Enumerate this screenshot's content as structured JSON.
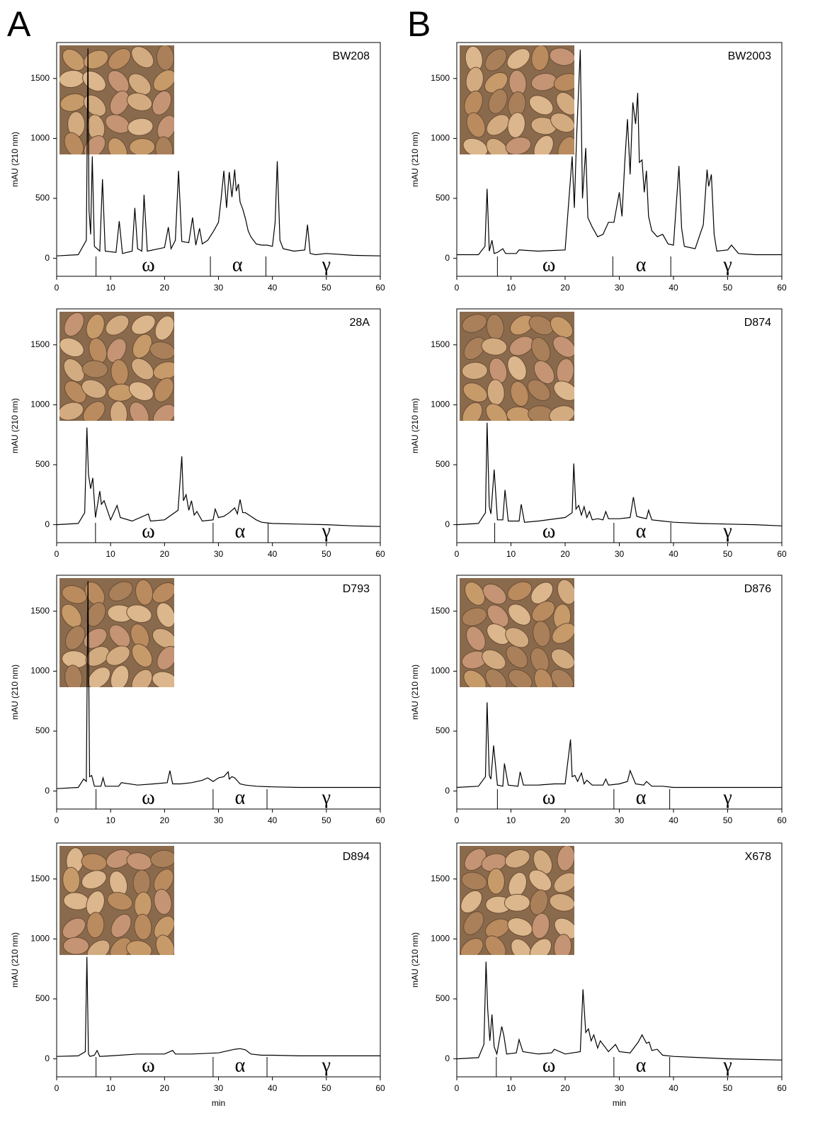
{
  "chart_data": [
    {
      "type": "line",
      "panel_label": "A",
      "title": "BW208",
      "ylabel": "mAU (210 nm)",
      "color": "#000000",
      "xlim": [
        0,
        60
      ],
      "xticks": [
        0,
        10,
        20,
        30,
        40,
        50,
        60
      ],
      "ylim": [
        -150,
        1800
      ],
      "yticks": [
        0,
        500,
        1000,
        1500
      ],
      "x": [
        0,
        4,
        5.5,
        5.8,
        6.0,
        6.3,
        6.6,
        7.0,
        8.0,
        8.5,
        9,
        11,
        11.6,
        12.2,
        14,
        14.5,
        15,
        15.8,
        16.2,
        16.8,
        20,
        20.7,
        21.2,
        22,
        22.6,
        23.2,
        24.5,
        25.2,
        25.8,
        26.5,
        27,
        28,
        29,
        30,
        30.5,
        31,
        31.5,
        32,
        32.5,
        33,
        33.3,
        33.7,
        34,
        34.5,
        35,
        35.5,
        36,
        37,
        38,
        39,
        40,
        40.5,
        40.9,
        41.4,
        42,
        44,
        46,
        46.5,
        47,
        48,
        50,
        55,
        60
      ],
      "values": [
        20,
        30,
        150,
        1750,
        400,
        200,
        850,
        100,
        60,
        660,
        60,
        50,
        310,
        40,
        60,
        420,
        80,
        60,
        530,
        60,
        90,
        260,
        80,
        150,
        730,
        140,
        130,
        340,
        110,
        250,
        120,
        150,
        220,
        300,
        500,
        730,
        420,
        720,
        510,
        740,
        560,
        620,
        470,
        410,
        330,
        230,
        180,
        120,
        110,
        110,
        100,
        300,
        810,
        150,
        80,
        60,
        70,
        280,
        40,
        30,
        40,
        25,
        20
      ],
      "dividers": [
        7.3,
        28.5,
        38.8
      ],
      "annotations": [
        {
          "text": "ω",
          "x": 17
        },
        {
          "text": "α",
          "x": 33.5
        },
        {
          "text": "γ",
          "x": 50
        }
      ]
    },
    {
      "type": "line",
      "panel_label": "B",
      "title": "BW2003",
      "ylabel": "mAU (210 nm)",
      "color": "#000000",
      "xlim": [
        0,
        60
      ],
      "xticks": [
        0,
        10,
        20,
        30,
        40,
        50,
        60
      ],
      "ylim": [
        -150,
        1800
      ],
      "yticks": [
        0,
        500,
        1000,
        1500
      ],
      "x": [
        0,
        4,
        5.2,
        5.6,
        6.0,
        6.5,
        6.9,
        7.5,
        8.5,
        9,
        11,
        11.5,
        15,
        20,
        21.3,
        21.7,
        22.1,
        22.8,
        23.2,
        23.8,
        24.2,
        25,
        26,
        27,
        28,
        29,
        30,
        30.5,
        31,
        31.5,
        32,
        32.5,
        33,
        33.4,
        33.7,
        34.2,
        34.6,
        35,
        35.4,
        36,
        37,
        38,
        39,
        40,
        41,
        41.5,
        42,
        44,
        45.5,
        46.2,
        46.5,
        47,
        47.5,
        48,
        50,
        50.7,
        52,
        55,
        60
      ],
      "values": [
        30,
        30,
        100,
        580,
        60,
        150,
        40,
        50,
        80,
        40,
        40,
        70,
        60,
        70,
        850,
        420,
        1000,
        1740,
        500,
        920,
        340,
        260,
        180,
        200,
        300,
        300,
        550,
        350,
        800,
        1160,
        700,
        1300,
        1120,
        1380,
        800,
        820,
        550,
        730,
        350,
        230,
        180,
        200,
        120,
        110,
        770,
        250,
        100,
        80,
        280,
        740,
        600,
        700,
        200,
        60,
        70,
        110,
        40,
        30,
        30
      ],
      "dividers": [
        7.5,
        28.8,
        39.5
      ],
      "annotations": [
        {
          "text": "ω",
          "x": 17
        },
        {
          "text": "α",
          "x": 34
        },
        {
          "text": "γ",
          "x": 50
        }
      ]
    },
    {
      "type": "line",
      "title": "28A",
      "ylabel": "mAU (210 nm)",
      "color": "#000000",
      "xlim": [
        0,
        60
      ],
      "xticks": [
        0,
        10,
        20,
        30,
        40,
        50,
        60
      ],
      "ylim": [
        -150,
        1800
      ],
      "yticks": [
        0,
        500,
        1000,
        1500
      ],
      "x": [
        0,
        4,
        5.2,
        5.6,
        5.9,
        6.3,
        6.7,
        7.2,
        8.0,
        8.3,
        8.8,
        10,
        11.2,
        11.8,
        14,
        17,
        17.4,
        20,
        22.5,
        23.2,
        23.5,
        24,
        24.5,
        25,
        25.5,
        26,
        27,
        29,
        29.4,
        30,
        31,
        32,
        33,
        33.5,
        34,
        34.5,
        35,
        36,
        37,
        38,
        40,
        45,
        50,
        55,
        60
      ],
      "values": [
        0,
        10,
        100,
        810,
        420,
        300,
        390,
        60,
        280,
        170,
        200,
        40,
        160,
        60,
        30,
        90,
        30,
        40,
        120,
        570,
        200,
        250,
        120,
        200,
        80,
        110,
        30,
        40,
        130,
        60,
        70,
        100,
        140,
        90,
        210,
        100,
        100,
        70,
        40,
        20,
        10,
        5,
        0,
        -10,
        -15
      ],
      "dividers": [
        7.2,
        29,
        39.2
      ],
      "annotations": [
        {
          "text": "ω",
          "x": 17
        },
        {
          "text": "α",
          "x": 34
        },
        {
          "text": "γ",
          "x": 50
        }
      ]
    },
    {
      "type": "line",
      "title": "D874",
      "ylabel": "mAU (210 nm)",
      "color": "#000000",
      "xlim": [
        0,
        60
      ],
      "xticks": [
        0,
        10,
        20,
        30,
        40,
        50,
        60
      ],
      "ylim": [
        -150,
        1800
      ],
      "yticks": [
        0,
        500,
        1000,
        1500
      ],
      "x": [
        0,
        4,
        5.3,
        5.6,
        6.0,
        6.3,
        6.9,
        7.5,
        8.5,
        8.9,
        9.5,
        11.5,
        11.9,
        12.5,
        15,
        20,
        21.3,
        21.6,
        22,
        22.5,
        23,
        23.5,
        24,
        24.5,
        25,
        26,
        27,
        27.5,
        28,
        30,
        32,
        32.6,
        33.2,
        34,
        35,
        35.4,
        36,
        38,
        40,
        45,
        50,
        55,
        60
      ],
      "values": [
        0,
        10,
        100,
        850,
        150,
        90,
        460,
        40,
        40,
        290,
        30,
        30,
        170,
        20,
        30,
        60,
        100,
        510,
        130,
        160,
        80,
        150,
        60,
        110,
        40,
        50,
        40,
        110,
        50,
        50,
        60,
        230,
        70,
        60,
        50,
        120,
        40,
        30,
        20,
        10,
        5,
        0,
        -10
      ],
      "dividers": [
        7,
        29,
        39.5
      ],
      "annotations": [
        {
          "text": "ω",
          "x": 17
        },
        {
          "text": "α",
          "x": 34
        },
        {
          "text": "γ",
          "x": 50
        }
      ]
    },
    {
      "type": "line",
      "title": "D793",
      "ylabel": "mAU (210 nm)",
      "color": "#000000",
      "xlim": [
        0,
        60
      ],
      "xticks": [
        0,
        10,
        20,
        30,
        40,
        50,
        60
      ],
      "ylim": [
        -150,
        1800
      ],
      "yticks": [
        0,
        500,
        1000,
        1500
      ],
      "x": [
        0,
        4,
        5.0,
        5.5,
        5.8,
        6.1,
        6.5,
        7,
        8.2,
        8.6,
        9,
        11.5,
        12,
        15,
        18,
        20.5,
        21,
        21.5,
        23,
        25,
        27,
        28,
        29,
        30,
        31,
        31.8,
        32,
        32.5,
        33,
        34,
        35,
        37,
        40,
        45,
        50,
        55,
        60
      ],
      "values": [
        20,
        30,
        100,
        80,
        1750,
        120,
        130,
        40,
        40,
        110,
        40,
        40,
        70,
        50,
        60,
        70,
        170,
        60,
        60,
        70,
        90,
        110,
        80,
        110,
        120,
        160,
        100,
        120,
        110,
        60,
        50,
        40,
        35,
        30,
        30,
        30,
        30
      ],
      "dividers": [
        7.3,
        29,
        39
      ],
      "annotations": [
        {
          "text": "ω",
          "x": 17
        },
        {
          "text": "α",
          "x": 34
        },
        {
          "text": "γ",
          "x": 50
        }
      ]
    },
    {
      "type": "line",
      "title": "D876",
      "ylabel": "mAU (210 nm)",
      "color": "#000000",
      "xlim": [
        0,
        60
      ],
      "xticks": [
        0,
        10,
        20,
        30,
        40,
        50,
        60
      ],
      "ylim": [
        -150,
        1800
      ],
      "yticks": [
        0,
        500,
        1000,
        1500
      ],
      "x": [
        0,
        4,
        5.3,
        5.6,
        6.0,
        6.3,
        6.8,
        7.5,
        8.5,
        8.8,
        9.5,
        11.3,
        11.7,
        12.3,
        15,
        18,
        20,
        21.0,
        21.3,
        21.8,
        22.3,
        23,
        23.5,
        24,
        25,
        27,
        27.5,
        28,
        30,
        31.5,
        32,
        33,
        34.5,
        35,
        36,
        38,
        40,
        45,
        50,
        55,
        60
      ],
      "values": [
        30,
        40,
        120,
        740,
        130,
        100,
        380,
        50,
        40,
        230,
        50,
        40,
        160,
        50,
        50,
        60,
        60,
        430,
        120,
        130,
        80,
        150,
        60,
        90,
        50,
        50,
        100,
        50,
        60,
        80,
        170,
        60,
        50,
        80,
        40,
        40,
        30,
        30,
        30,
        30,
        30
      ],
      "dividers": [
        7.5,
        29,
        39.3
      ],
      "annotations": [
        {
          "text": "ω",
          "x": 17
        },
        {
          "text": "α",
          "x": 34
        },
        {
          "text": "γ",
          "x": 50
        }
      ]
    },
    {
      "type": "line",
      "title": "D894",
      "ylabel": "mAU (210 nm)",
      "xlabel": "min",
      "color": "#000000",
      "xlim": [
        0,
        60
      ],
      "xticks": [
        0,
        10,
        20,
        30,
        40,
        50,
        60
      ],
      "ylim": [
        -150,
        1800
      ],
      "yticks": [
        0,
        500,
        1000,
        1500
      ],
      "x": [
        0,
        4,
        5.3,
        5.6,
        5.9,
        6.2,
        7,
        7.5,
        8,
        10,
        15,
        20,
        21.5,
        22,
        25,
        30,
        32,
        33,
        34,
        35,
        36,
        38,
        40,
        45,
        50,
        55,
        60
      ],
      "values": [
        20,
        25,
        60,
        850,
        40,
        20,
        30,
        70,
        20,
        25,
        40,
        40,
        70,
        40,
        40,
        50,
        70,
        80,
        85,
        75,
        40,
        30,
        30,
        25,
        25,
        25,
        25
      ],
      "dividers": [
        7.3,
        29,
        39
      ],
      "annotations": [
        {
          "text": "ω",
          "x": 17
        },
        {
          "text": "α",
          "x": 34
        },
        {
          "text": "γ",
          "x": 50
        }
      ]
    },
    {
      "type": "line",
      "title": "X678",
      "ylabel": "mAU (210 nm)",
      "xlabel": "min",
      "color": "#000000",
      "xlim": [
        0,
        60
      ],
      "xticks": [
        0,
        10,
        20,
        30,
        40,
        50,
        60
      ],
      "ylim": [
        -150,
        1800
      ],
      "yticks": [
        0,
        500,
        1000,
        1500
      ],
      "x": [
        0,
        4,
        5.0,
        5.4,
        5.7,
        6.1,
        6.5,
        6.9,
        7.4,
        8.3,
        8.7,
        9.2,
        11,
        11.5,
        12.2,
        15,
        17.5,
        18,
        20,
        22.8,
        23.3,
        23.8,
        24.3,
        24.8,
        25.3,
        26,
        26.5,
        28,
        29.3,
        30,
        32,
        33.5,
        34.2,
        35,
        35.5,
        36,
        37,
        38,
        40,
        45,
        50,
        55,
        60
      ],
      "values": [
        0,
        10,
        120,
        810,
        420,
        150,
        370,
        100,
        40,
        270,
        190,
        40,
        50,
        160,
        60,
        40,
        50,
        80,
        40,
        60,
        580,
        220,
        250,
        150,
        200,
        90,
        150,
        60,
        120,
        60,
        50,
        140,
        200,
        130,
        140,
        70,
        80,
        30,
        20,
        10,
        0,
        -5,
        -10
      ],
      "dividers": [
        7.3,
        29,
        39.3
      ],
      "annotations": [
        {
          "text": "ω",
          "x": 17
        },
        {
          "text": "α",
          "x": 34
        },
        {
          "text": "γ",
          "x": 50
        }
      ]
    }
  ]
}
